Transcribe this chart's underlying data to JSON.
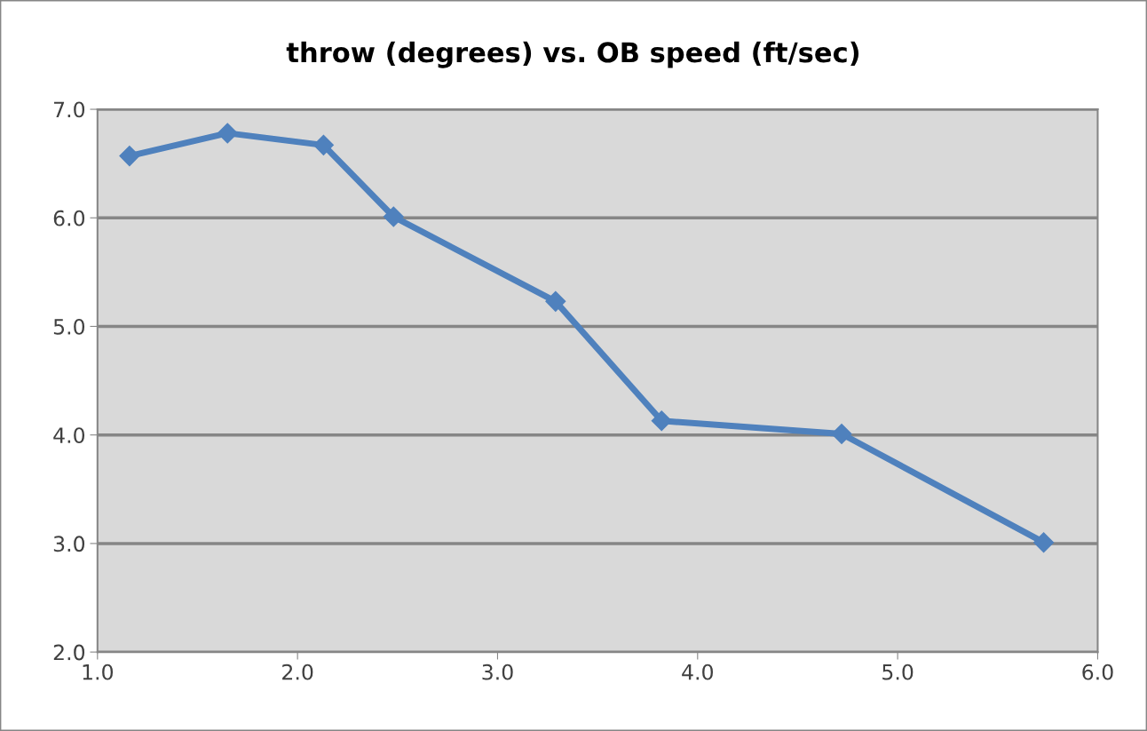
{
  "chart_data": {
    "type": "line",
    "title": "throw (degrees) vs. OB speed (ft/sec)",
    "x": [
      1.16,
      1.65,
      2.13,
      2.48,
      3.29,
      3.82,
      4.72,
      5.73
    ],
    "series": [
      {
        "color": "#4f81bd",
        "values": [
          6.57,
          6.78,
          6.67,
          6.01,
          5.23,
          4.13,
          4.01,
          3.01
        ]
      }
    ],
    "xlim": [
      1.0,
      6.0
    ],
    "xticks": [
      {
        "value": 1,
        "label": "1.0"
      },
      {
        "value": 2,
        "label": "2.0"
      },
      {
        "value": 3,
        "label": "3.0"
      },
      {
        "value": 4,
        "label": "4.0"
      },
      {
        "value": 5,
        "label": "5.0"
      },
      {
        "value": 6,
        "label": "6.0"
      }
    ],
    "ylim": [
      2.0,
      7.0
    ],
    "yticks": [
      {
        "value": 2,
        "label": "2.0"
      },
      {
        "value": 3,
        "label": "3.0"
      },
      {
        "value": 4,
        "label": "4.0"
      },
      {
        "value": 5,
        "label": "5.0"
      },
      {
        "value": 6,
        "label": "6.0"
      },
      {
        "value": 7,
        "label": "7.0"
      }
    ],
    "grid": "y",
    "marker": "diamond",
    "line_style": "solid"
  }
}
